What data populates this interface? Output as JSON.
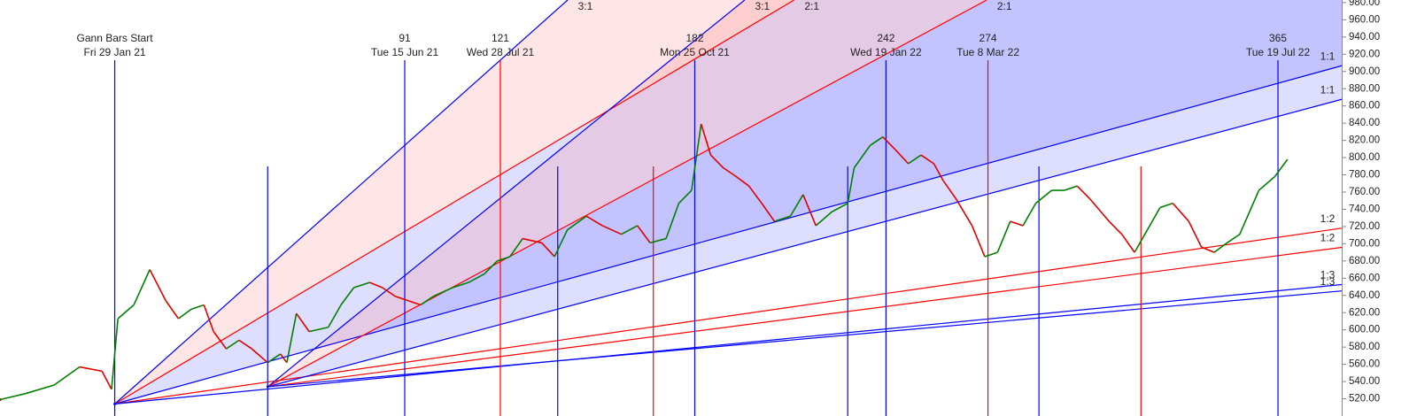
{
  "chart_data": {
    "type": "line",
    "xlim": [
      -36,
      385
    ],
    "ylim": [
      500,
      983
    ],
    "yticks": [
      {
        "value": 520,
        "label": "520.00"
      },
      {
        "value": 540,
        "label": "540.00"
      },
      {
        "value": 560,
        "label": "560.00"
      },
      {
        "value": 580,
        "label": "580.00"
      },
      {
        "value": 600,
        "label": "600.00"
      },
      {
        "value": 620,
        "label": "620.00"
      },
      {
        "value": 640,
        "label": "640.00"
      },
      {
        "value": 660,
        "label": "660.00"
      },
      {
        "value": 680,
        "label": "680.00"
      },
      {
        "value": 700,
        "label": "700.00"
      },
      {
        "value": 720,
        "label": "720.00"
      },
      {
        "value": 740,
        "label": "740.00"
      },
      {
        "value": 760,
        "label": "760.00"
      },
      {
        "value": 780,
        "label": "780.00"
      },
      {
        "value": 800,
        "label": "800.00"
      },
      {
        "value": 820,
        "label": "820.00"
      },
      {
        "value": 840,
        "label": "840.00"
      },
      {
        "value": 860,
        "label": "860.00"
      },
      {
        "value": 880,
        "label": "880.00"
      },
      {
        "value": 900,
        "label": "900.00"
      },
      {
        "value": 920,
        "label": "920.00"
      },
      {
        "value": 940,
        "label": "940.00"
      },
      {
        "value": 960,
        "label": "960.00"
      },
      {
        "value": 980,
        "label": "980.00"
      }
    ],
    "up_color": "#008000",
    "down_color": "#e00000",
    "x": [
      -36,
      -28,
      -19,
      -11,
      -4,
      -1,
      1,
      6,
      11,
      16,
      20,
      24,
      28,
      31,
      35,
      39,
      43,
      48,
      52,
      54,
      57,
      61,
      67,
      71,
      75,
      80,
      84,
      88,
      92,
      96,
      100,
      106,
      111,
      116,
      120,
      124,
      128,
      134,
      138,
      142,
      148,
      153,
      159,
      164,
      168,
      173,
      177,
      181,
      184,
      187,
      191,
      195,
      199,
      203,
      207,
      212,
      216,
      220,
      225,
      230,
      232,
      237,
      241,
      245,
      249,
      253,
      257,
      260,
      264,
      269,
      273,
      277,
      281,
      285,
      289,
      294,
      298,
      302,
      306,
      312,
      316,
      320,
      324,
      328,
      332,
      337,
      341,
      345,
      349,
      353,
      359,
      364,
      368
    ],
    "values": [
      519,
      526,
      536,
      557,
      552,
      531,
      613,
      629,
      670,
      634,
      613,
      624,
      629,
      598,
      578,
      588,
      578,
      562,
      572,
      562,
      619,
      598,
      603,
      629,
      649,
      655,
      649,
      639,
      634,
      629,
      639,
      649,
      655,
      665,
      680,
      685,
      706,
      701,
      685,
      716,
      732,
      721,
      711,
      721,
      701,
      706,
      747,
      762,
      839,
      803,
      788,
      778,
      767,
      747,
      726,
      732,
      757,
      721,
      737,
      747,
      788,
      814,
      824,
      809,
      793,
      803,
      793,
      773,
      752,
      721,
      685,
      690,
      726,
      721,
      747,
      762,
      762,
      767,
      752,
      726,
      711,
      690,
      716,
      742,
      747,
      726,
      696,
      690,
      701,
      711,
      762,
      778,
      798
    ],
    "gann": [
      {
        "origin_bar": 0,
        "origin_price": 514,
        "start_label": "Gann Bars Start",
        "start_date": "Fri 29 Jan 21",
        "start_color": "#0000ff",
        "markers": [
          {
            "count": 91,
            "date": "Tue 15 Jun 21",
            "color": "#0000ff"
          },
          {
            "count": 121,
            "date": "Wed 28 Jul 21",
            "color": "#ff0000"
          },
          {
            "count": 182,
            "date": "Mon 25 Oct 21",
            "color": "#0000ff"
          },
          {
            "count": 242,
            "date": "Wed 19 Jan 22",
            "color": "#0000ff"
          },
          {
            "count": 274,
            "date": "Tue 8 Mar 22",
            "color": "#ff0000"
          },
          {
            "count": 365,
            "date": "Tue 19 Jul 22",
            "color": "#0000ff"
          }
        ],
        "fans": [
          {
            "label": "3:1",
            "slope": 3.3,
            "color": "#0000ff"
          },
          {
            "label": "2:1",
            "slope": 2.2,
            "color": "#ff0000"
          },
          {
            "label": "1:1",
            "slope": 1.02,
            "color": "#0000ff"
          },
          {
            "label": "1:2",
            "slope": 0.53,
            "color": "#ff0000"
          },
          {
            "label": "1:3",
            "slope": 0.36,
            "color": "#0000ff"
          }
        ]
      },
      {
        "origin_bar": 48,
        "origin_price": 534,
        "start_color": "#0000ff",
        "markers": [
          {
            "count": 91,
            "color": "#0000ff"
          },
          {
            "count": 121,
            "color": "#ff0000"
          },
          {
            "count": 182,
            "color": "#0000ff"
          },
          {
            "count": 242,
            "color": "#0000ff"
          },
          {
            "count": 274,
            "color": "#ff0000"
          }
        ],
        "fans": [
          {
            "label": "3:1",
            "slope": 3.0,
            "color": "#0000ff"
          },
          {
            "label": "2:1",
            "slope": 1.99,
            "color": "#ff0000"
          },
          {
            "label": "1:1",
            "slope": 0.99,
            "color": "#0000ff"
          },
          {
            "label": "1:2",
            "slope": 0.48,
            "color": "#ff0000"
          },
          {
            "label": "1:3",
            "slope": 0.33,
            "color": "#0000ff"
          }
        ]
      }
    ]
  }
}
